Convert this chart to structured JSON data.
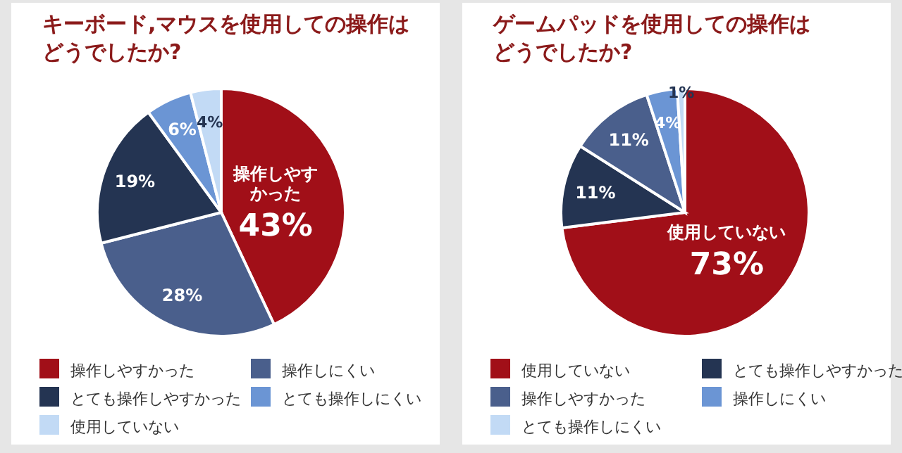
{
  "chart_data": [
    {
      "type": "pie",
      "title": "キーボード,マウスを使用しての操作はどうでしたか?",
      "categories": [
        "操作しやすかった",
        "操作しにくい",
        "とても操作しやすかった",
        "とても操作しにくい",
        "使用していない"
      ],
      "values": [
        43,
        28,
        19,
        6,
        4
      ],
      "colors": [
        "#a10f18",
        "#4a5f8c",
        "#243452",
        "#6b95d4",
        "#c2daf5"
      ],
      "value_labels": [
        "操作しやすかった 43%",
        "28%",
        "19%",
        "6%",
        "4%"
      ],
      "legend": "bottom"
    },
    {
      "type": "pie",
      "title": "ゲームパッドを使用しての操作はどうでしたか?",
      "categories": [
        "使用していない",
        "とても操作しやすかった",
        "操作しやすかった",
        "操作しにくい",
        "とても操作しにくい"
      ],
      "values": [
        73,
        11,
        11,
        4,
        1
      ],
      "colors": [
        "#a10f18",
        "#243452",
        "#4a5f8c",
        "#6b95d4",
        "#c2daf5"
      ],
      "value_labels": [
        "使用していない 73%",
        "11%",
        "11%",
        "4%",
        "1%"
      ],
      "legend": "bottom"
    }
  ]
}
